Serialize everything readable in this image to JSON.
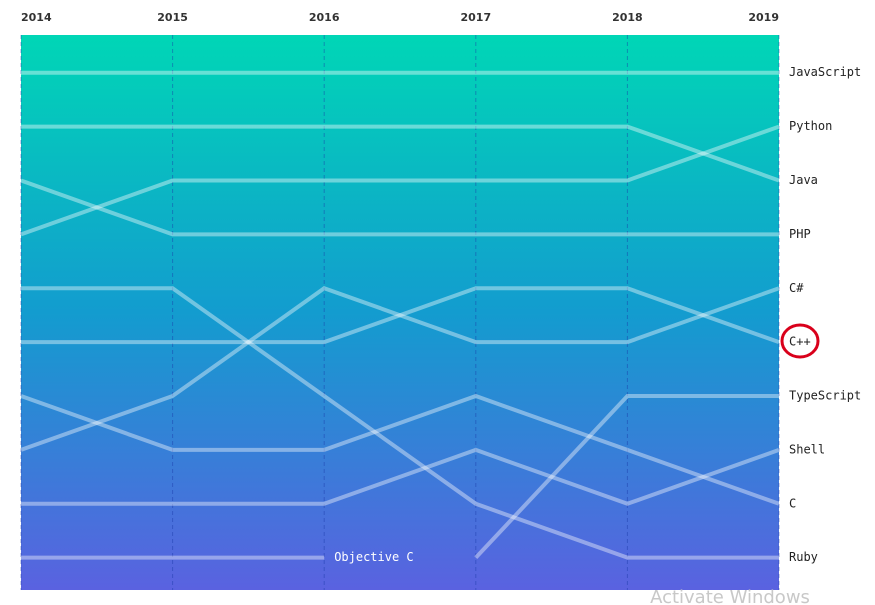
{
  "chart_data": {
    "type": "bump",
    "x": [
      2014,
      2015,
      2016,
      2017,
      2018,
      2019
    ],
    "xlim": [
      2014,
      2019
    ],
    "ylim": [
      0.3,
      10.6
    ],
    "y_inverted": true,
    "grid": true,
    "color": "#ffffff",
    "series": [
      {
        "name": "JavaScript",
        "values": [
          1,
          1,
          1,
          1,
          1,
          1
        ]
      },
      {
        "name": "Python",
        "values": [
          4,
          3,
          3,
          3,
          3,
          2
        ]
      },
      {
        "name": "Java",
        "values": [
          2,
          2,
          2,
          2,
          2,
          3
        ]
      },
      {
        "name": "PHP",
        "values": [
          3,
          4,
          4,
          4,
          4,
          4
        ]
      },
      {
        "name": "C#",
        "values": [
          8,
          7,
          5,
          6,
          6,
          5
        ]
      },
      {
        "name": "C++",
        "values": [
          6,
          6,
          6,
          5,
          5,
          6
        ]
      },
      {
        "name": "TypeScript",
        "values": [
          null,
          null,
          null,
          10,
          7,
          7
        ]
      },
      {
        "name": "Shell",
        "values": [
          9,
          9,
          9,
          8,
          9,
          8
        ]
      },
      {
        "name": "C",
        "values": [
          7,
          8,
          8,
          7,
          8,
          9
        ]
      },
      {
        "name": "Ruby",
        "values": [
          5,
          5,
          7,
          9,
          10,
          10
        ]
      },
      {
        "name": "Objective C",
        "values": [
          10,
          10,
          10,
          null,
          null,
          null
        ]
      }
    ],
    "watermark": "Activate Windows"
  }
}
